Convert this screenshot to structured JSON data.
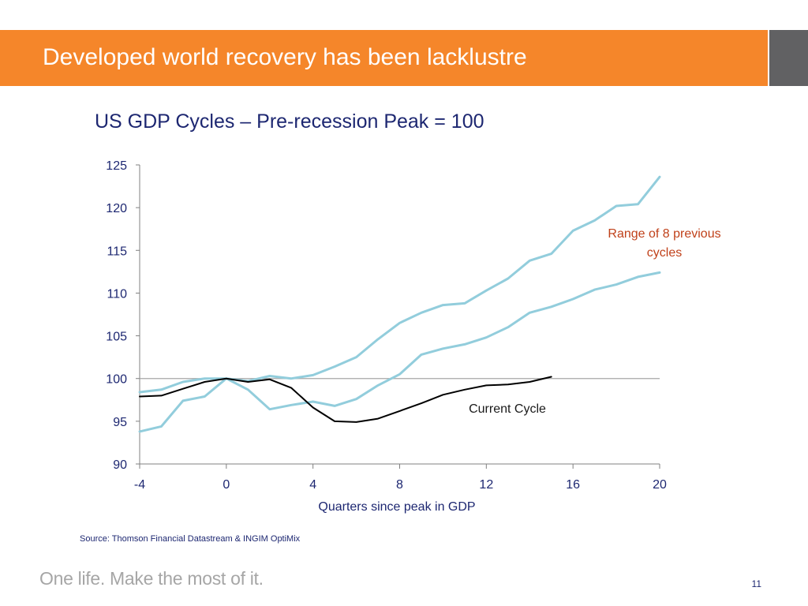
{
  "slide": {
    "title": "Developed world recovery has been lacklustre",
    "source": "Source: Thomson Financial Datastream & INGIM OptiMix",
    "tagline": "One life. Make the most of it.",
    "page_number": "11"
  },
  "colors": {
    "header_orange": "#f5862a",
    "header_gray": "#616163",
    "range_lines": "#92cddc",
    "current_line": "#000000",
    "reference_line": "#a6a6a6",
    "annotation_red": "#c0411a",
    "text_navy": "#1d2771"
  },
  "chart_data": {
    "type": "line",
    "title": "US GDP Cycles – Pre-recession Peak = 100",
    "xlabel": "Quarters since peak in GDP",
    "ylabel": "",
    "xlim": [
      -4,
      20
    ],
    "ylim": [
      90,
      125
    ],
    "x_ticks": [
      -4,
      0,
      4,
      8,
      12,
      16,
      20
    ],
    "y_ticks": [
      90,
      95,
      100,
      105,
      110,
      115,
      120,
      125
    ],
    "grid": false,
    "reference_line": 100,
    "series": [
      {
        "id": "range-upper",
        "x": [
          -4,
          -3,
          -2,
          -1,
          0,
          1,
          2,
          3,
          4,
          5,
          6,
          7,
          8,
          9,
          10,
          11,
          12,
          13,
          14,
          15,
          16,
          17,
          18,
          19,
          20
        ],
        "values": [
          98.4,
          98.7,
          99.6,
          100.0,
          100.0,
          99.7,
          100.3,
          100.0,
          100.4,
          101.4,
          102.5,
          104.6,
          106.5,
          107.7,
          108.6,
          108.8,
          110.3,
          111.7,
          113.8,
          114.6,
          117.3,
          118.5,
          120.2,
          120.4,
          123.6
        ]
      },
      {
        "id": "range-lower",
        "x": [
          -4,
          -3,
          -2,
          -1,
          0,
          1,
          2,
          3,
          4,
          5,
          6,
          7,
          8,
          9,
          10,
          11,
          12,
          13,
          14,
          15,
          16,
          17,
          18,
          19,
          20
        ],
        "values": [
          93.8,
          94.4,
          97.4,
          97.9,
          100.0,
          98.7,
          96.4,
          96.9,
          97.3,
          96.8,
          97.6,
          99.2,
          100.5,
          102.8,
          103.5,
          104.0,
          104.8,
          106.0,
          107.7,
          108.4,
          109.3,
          110.4,
          111.0,
          111.9,
          112.4
        ]
      },
      {
        "id": "current",
        "name": "Current Cycle",
        "x": [
          -4,
          -3,
          -2,
          -1,
          0,
          1,
          2,
          3,
          4,
          5,
          6,
          7,
          8,
          9,
          10,
          11,
          12,
          13,
          14,
          15
        ],
        "values": [
          97.9,
          98.0,
          98.8,
          99.6,
          100.0,
          99.6,
          99.9,
          98.9,
          96.6,
          95.0,
          94.9,
          95.3,
          96.2,
          97.1,
          98.1,
          98.7,
          99.2,
          99.3,
          99.6,
          100.2
        ]
      }
    ],
    "annotations": {
      "range": "Range of 8 previous cycles",
      "current": "Current Cycle"
    }
  }
}
